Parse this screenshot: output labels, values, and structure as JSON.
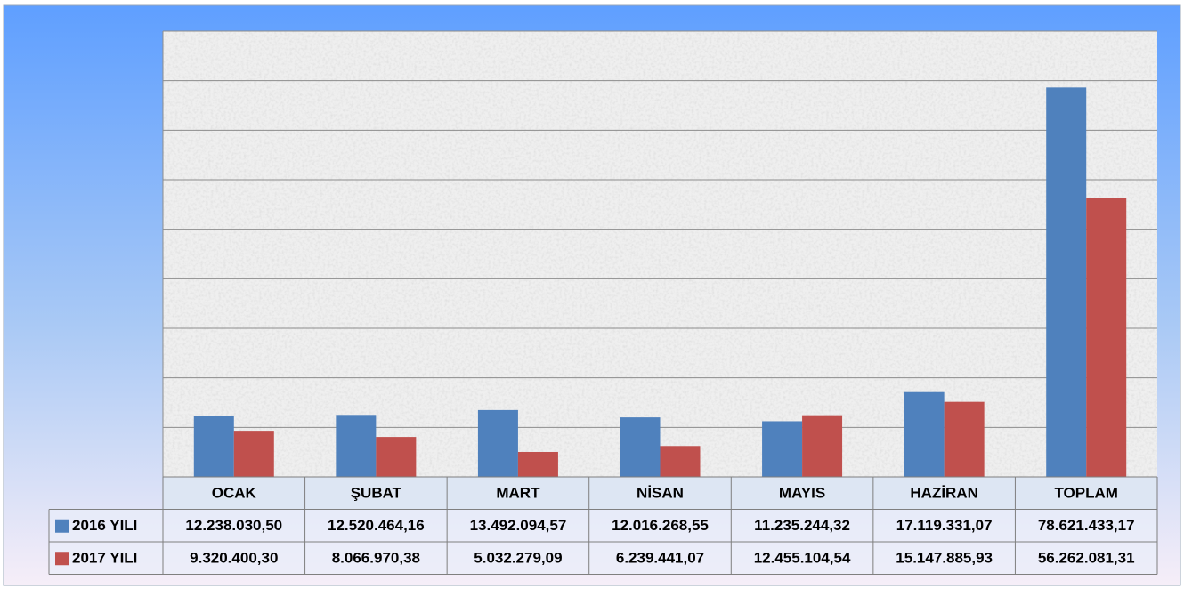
{
  "chart_data": {
    "type": "bar",
    "categories": [
      "OCAK",
      "ŞUBAT",
      "MART",
      "NİSAN",
      "MAYIS",
      "HAZİRAN",
      "TOPLAM"
    ],
    "series": [
      {
        "name": "2016 YILI",
        "color": "#4f81bd",
        "values": [
          12238030.5,
          12520464.16,
          13492094.57,
          12016268.55,
          11235244.32,
          17119331.07,
          78621433.17
        ],
        "value_labels": [
          "12.238.030,50",
          "12.520.464,16",
          "13.492.094,57",
          "12.016.268,55",
          "11.235.244,32",
          "17.119.331,07",
          "78.621.433,17"
        ]
      },
      {
        "name": "2017 YILI",
        "color": "#c0504d",
        "values": [
          9320400.3,
          8066970.38,
          5032279.09,
          6239441.07,
          12455104.54,
          15147885.93,
          56262081.31
        ],
        "value_labels": [
          "9.320.400,30",
          "8.066.970,38",
          "5.032.279,09",
          "6.239.441,07",
          "12.455.104,54",
          "15.147.885,93",
          "56.262.081,31"
        ]
      }
    ],
    "ylim": [
      0,
      90000000
    ],
    "yticks": [
      0,
      10000000,
      20000000,
      30000000,
      40000000,
      50000000,
      60000000,
      70000000,
      80000000,
      90000000
    ],
    "grid": true
  }
}
